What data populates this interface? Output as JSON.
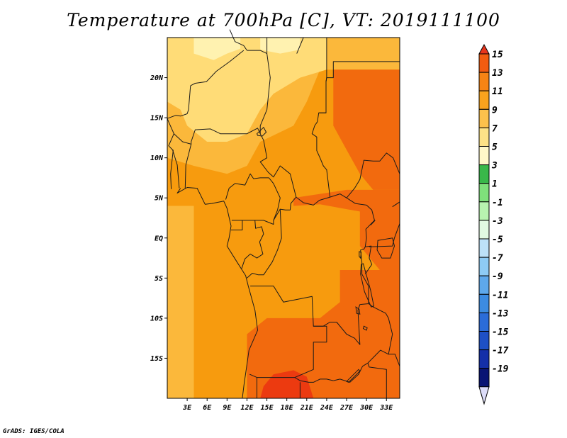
{
  "title": "Temperature at 700hPa [C], VT: 2019111100",
  "credit": "GrADS: IGES/COLA",
  "map": {
    "lon_range": [
      0,
      35
    ],
    "lat_range": [
      -20,
      25
    ],
    "xticks": [
      "3E",
      "6E",
      "9E",
      "12E",
      "15E",
      "18E",
      "21E",
      "24E",
      "27E",
      "30E",
      "33E"
    ],
    "yticks": [
      "20N",
      "15N",
      "10N",
      "5N",
      "EQ",
      "5S",
      "10S",
      "15S"
    ],
    "xtick_lons": [
      3,
      6,
      9,
      12,
      15,
      18,
      21,
      24,
      27,
      30,
      33
    ],
    "ytick_lats": [
      20,
      15,
      10,
      5,
      0,
      -5,
      -10,
      -15
    ],
    "colors": {
      "c5": "#fff2b0",
      "c7": "#ffdc77",
      "c9": "#fbb83b",
      "c11": "#f79b0e",
      "c13": "#f26a0e",
      "c15": "#ec3a10",
      "border": "#1a1a1a"
    }
  },
  "colorbar": {
    "labels": [
      "15",
      "13",
      "11",
      "9",
      "7",
      "5",
      "3",
      "1",
      "-1",
      "-3",
      "-5",
      "-7",
      "-9",
      "-11",
      "-13",
      "-15",
      "-17",
      "-19"
    ],
    "colors": [
      "#e8351c",
      "#f25c10",
      "#f68414",
      "#f9a31d",
      "#fcc14c",
      "#fde287",
      "#fff8c9",
      "#39b84a",
      "#7fe07b",
      "#b8f3b0",
      "#e1fae2",
      "#bde1f8",
      "#8ecbf5",
      "#5ea8eb",
      "#3c8be1",
      "#2b6cd8",
      "#1e50c5",
      "#142fa8",
      "#091474",
      "#dcdcf8"
    ]
  }
}
